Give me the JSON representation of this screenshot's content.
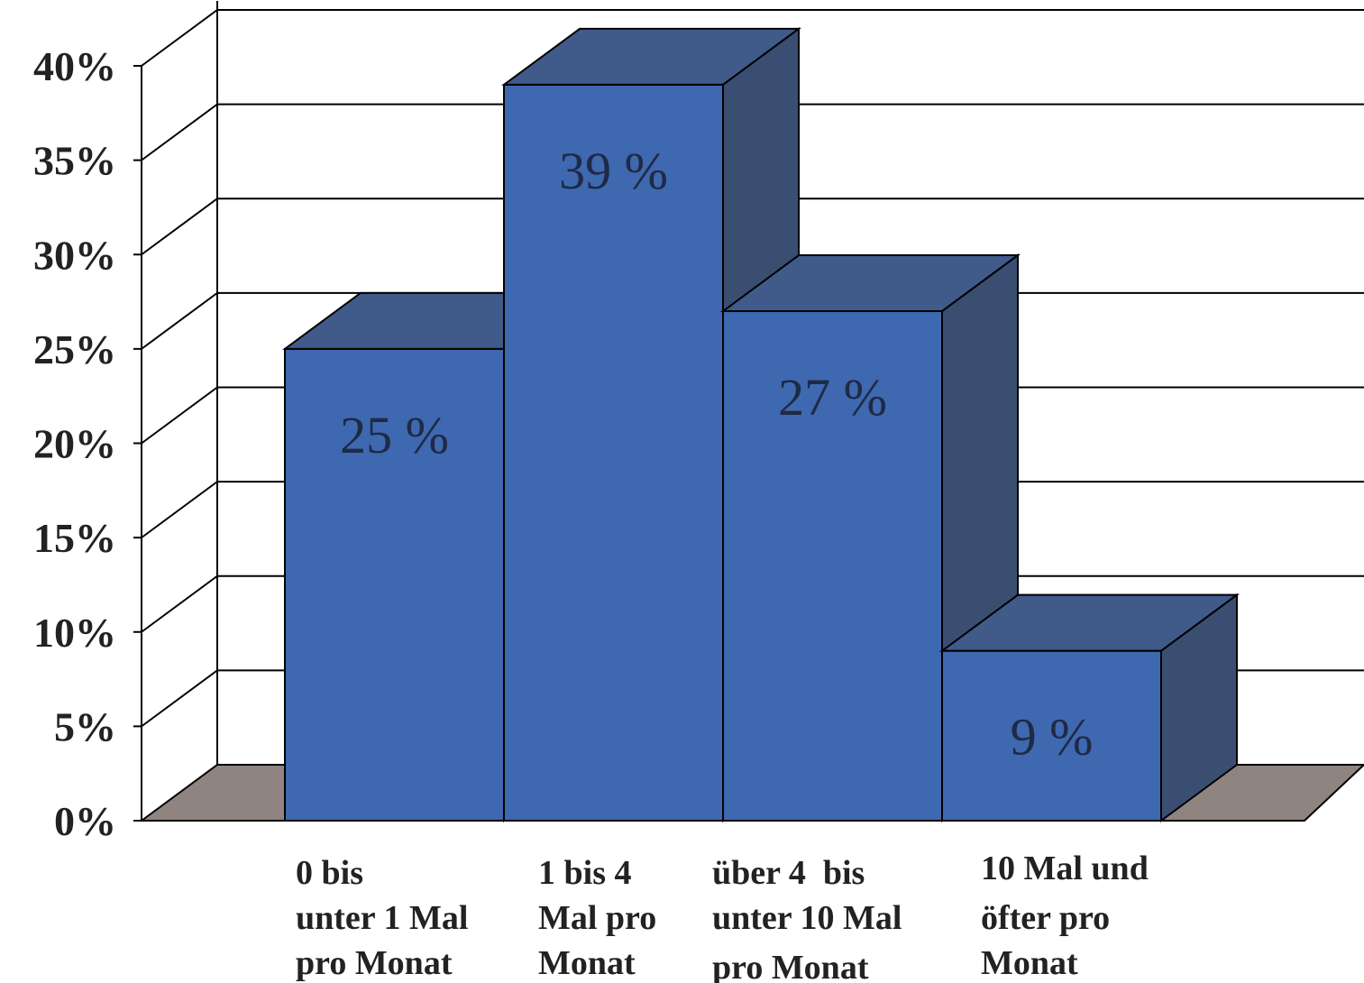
{
  "chart_data": {
    "type": "bar",
    "categories": [
      [
        "0 bis",
        "unter 1 Mal",
        "pro Monat"
      ],
      [
        "1 bis 4",
        "Mal pro",
        "Monat"
      ],
      [
        "über 4  bis",
        "unter 10 Mal",
        "pro Monat"
      ],
      [
        "10 Mal und",
        "öfter pro",
        "Monat"
      ]
    ],
    "values": [
      25,
      39,
      27,
      9
    ],
    "value_labels": [
      "25 %",
      "39 %",
      "27 %",
      "9 %"
    ],
    "ylim": [
      0,
      40
    ],
    "yticks": [
      0,
      5,
      10,
      15,
      20,
      25,
      30,
      35,
      40
    ],
    "ytick_labels": [
      "0%",
      "5%",
      "10%",
      "15%",
      "20%",
      "25%",
      "30%",
      "35%",
      "40%"
    ],
    "title": "",
    "xlabel": "",
    "ylabel": "",
    "grid": true,
    "legend": false,
    "three_d": true,
    "colors": {
      "bar_front": "#3e68b0",
      "bar_top": "#405a8a",
      "bar_side": "#3a4e72",
      "floor": "#8f8480",
      "grid": "#000000"
    }
  }
}
